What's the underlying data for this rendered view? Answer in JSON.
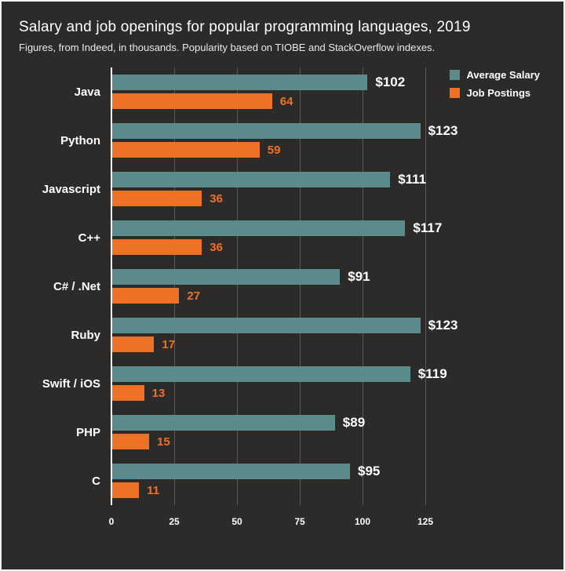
{
  "title": "Salary and job openings for popular programming languages, 2019",
  "subtitle": "Figures, from Indeed, in thousands. Popularity based on TIOBE and StackOverflow indexes.",
  "legend": {
    "salary": "Average Salary",
    "jobs": "Job Postings"
  },
  "colors": {
    "background": "#2d2b2a",
    "salary": "#5b8b8b",
    "jobs": "#ee7125",
    "grid": "#5b5957",
    "axis": "#fbfbfb",
    "text": "#ffffff"
  },
  "chart_data": {
    "type": "bar",
    "orientation": "horizontal",
    "title": "Salary and job openings for popular programming languages, 2019",
    "subtitle": "Figures, from Indeed, in thousands. Popularity based on TIOBE and StackOverflow indexes.",
    "categories": [
      "Java",
      "Python",
      "Javascript",
      "C++",
      "C# / .Net",
      "Ruby",
      "Swift / iOS",
      "PHP",
      "C"
    ],
    "series": [
      {
        "name": "Average Salary",
        "values": [
          102,
          123,
          111,
          117,
          91,
          123,
          119,
          89,
          95
        ],
        "labels": [
          "$102",
          "$123",
          "$111",
          "$117",
          "$91",
          "$123",
          "$119",
          "$89",
          "$95"
        ]
      },
      {
        "name": "Job Postings",
        "values": [
          64,
          59,
          36,
          36,
          27,
          17,
          13,
          15,
          11
        ],
        "labels": [
          "64",
          "59",
          "36",
          "36",
          "27",
          "17",
          "13",
          "15",
          "11"
        ]
      }
    ],
    "xlim": [
      0,
      125
    ],
    "xticks": [
      0,
      25,
      50,
      75,
      100,
      125
    ],
    "grid": true,
    "legend_position": "top-right"
  }
}
